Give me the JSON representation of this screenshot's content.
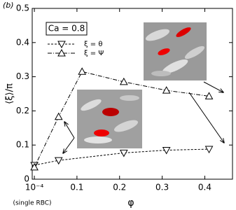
{
  "chart_data": {
    "type": "line",
    "panel_label": "(b)",
    "annotation": "Ca = 0.8",
    "x_note": "(single RBC)",
    "xlabel": "φ",
    "ylabel": "⟨ξ⟩/π",
    "xlim": [
      -0.005,
      0.465
    ],
    "ylim": [
      0,
      0.5
    ],
    "xticks": [
      {
        "value": 0.0001,
        "label": "10⁻⁴"
      },
      0.1,
      0.2,
      0.3,
      0.4
    ],
    "yticks": [
      0,
      0.1,
      0.2,
      0.3,
      0.4,
      0.5
    ],
    "x": [
      0.0001,
      0.057,
      0.112,
      0.21,
      0.31,
      0.41
    ],
    "series": [
      {
        "name": "ξ = θ",
        "color": "#000000",
        "marker": "down",
        "dash": "3,2",
        "values": [
          0.041,
          0.055,
          null,
          0.077,
          0.085,
          0.088
        ],
        "x": [
          0.0001,
          0.057,
          0.112,
          0.21,
          0.31,
          0.41
        ]
      },
      {
        "name": "ξ = Ψ",
        "color": "#000000",
        "marker": "up",
        "dash": "6,2,1,2",
        "values": [
          0.035,
          0.183,
          0.315,
          0.285,
          0.26,
          0.243
        ]
      }
    ]
  }
}
